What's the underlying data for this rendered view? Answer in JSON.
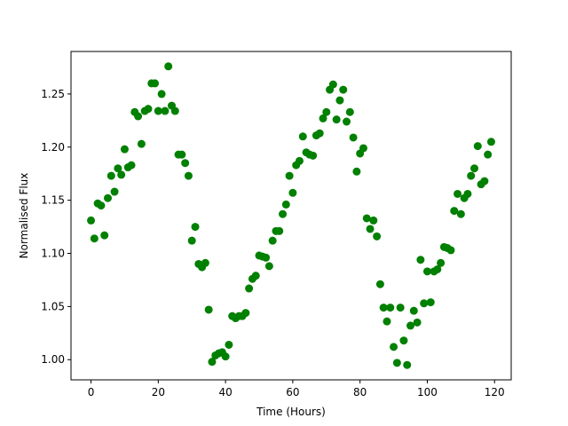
{
  "chart_data": {
    "type": "scatter",
    "xlabel": "Time (Hours)",
    "ylabel": "Normalised Flux",
    "color": "#008000",
    "x": [
      0,
      1,
      2,
      3,
      4,
      5,
      6,
      7,
      8,
      9,
      10,
      11,
      12,
      13,
      14,
      15,
      16,
      17,
      18,
      19,
      20,
      21,
      22,
      23,
      24,
      25,
      26,
      27,
      28,
      29,
      30,
      31,
      32,
      33,
      34,
      35,
      36,
      37,
      38,
      39,
      40,
      41,
      42,
      43,
      44,
      45,
      46,
      47,
      48,
      49,
      50,
      51,
      52,
      53,
      54,
      55,
      56,
      57,
      58,
      59,
      60,
      61,
      62,
      63,
      64,
      65,
      66,
      67,
      68,
      69,
      70,
      71,
      72,
      73,
      74,
      75,
      76,
      77,
      78,
      79,
      80,
      81,
      82,
      83,
      84,
      85,
      86,
      87,
      88,
      89,
      90,
      91,
      92,
      93,
      94,
      95,
      96,
      97,
      98,
      99,
      100,
      101,
      102,
      103,
      104,
      105,
      106,
      107,
      108,
      109,
      110,
      111,
      112,
      113,
      114,
      115,
      116,
      117,
      118,
      119
    ],
    "values": [
      1.131,
      1.114,
      1.147,
      1.145,
      1.117,
      1.152,
      1.173,
      1.158,
      1.18,
      1.174,
      1.198,
      1.181,
      1.183,
      1.233,
      1.229,
      1.203,
      1.234,
      1.236,
      1.26,
      1.26,
      1.234,
      1.25,
      1.234,
      1.276,
      1.239,
      1.234,
      1.193,
      1.193,
      1.185,
      1.173,
      1.112,
      1.125,
      1.09,
      1.087,
      1.091,
      1.047,
      0.998,
      1.004,
      1.006,
      1.007,
      1.003,
      1.014,
      1.041,
      1.039,
      1.041,
      1.041,
      1.044,
      1.067,
      1.076,
      1.079,
      1.098,
      1.097,
      1.096,
      1.088,
      1.112,
      1.121,
      1.121,
      1.137,
      1.146,
      1.173,
      1.157,
      1.183,
      1.187,
      1.21,
      1.195,
      1.193,
      1.192,
      1.211,
      1.213,
      1.227,
      1.233,
      1.254,
      1.259,
      1.226,
      1.244,
      1.254,
      1.224,
      1.233,
      1.209,
      1.177,
      1.194,
      1.199,
      1.133,
      1.123,
      1.131,
      1.116,
      1.071,
      1.049,
      1.036,
      1.049,
      1.012,
      0.997,
      1.049,
      1.018,
      0.995,
      1.032,
      1.046,
      1.035,
      1.094,
      1.053,
      1.083,
      1.054,
      1.083,
      1.085,
      1.091,
      1.106,
      1.105,
      1.103,
      1.14,
      1.156,
      1.137,
      1.152,
      1.156,
      1.173,
      1.18,
      1.201,
      1.165,
      1.168,
      1.193,
      1.205
    ],
    "xlim": [
      -5.95,
      124.95
    ],
    "ylim": [
      0.981,
      1.29
    ],
    "xticks": [
      0,
      20,
      40,
      60,
      80,
      100,
      120
    ],
    "yticks": [
      {
        "value": 1.0,
        "label": "1.00"
      },
      {
        "value": 1.05,
        "label": "1.05"
      },
      {
        "value": 1.1,
        "label": "1.10"
      },
      {
        "value": 1.15,
        "label": "1.15"
      },
      {
        "value": 1.2,
        "label": "1.20"
      },
      {
        "value": 1.25,
        "label": "1.25"
      }
    ]
  }
}
